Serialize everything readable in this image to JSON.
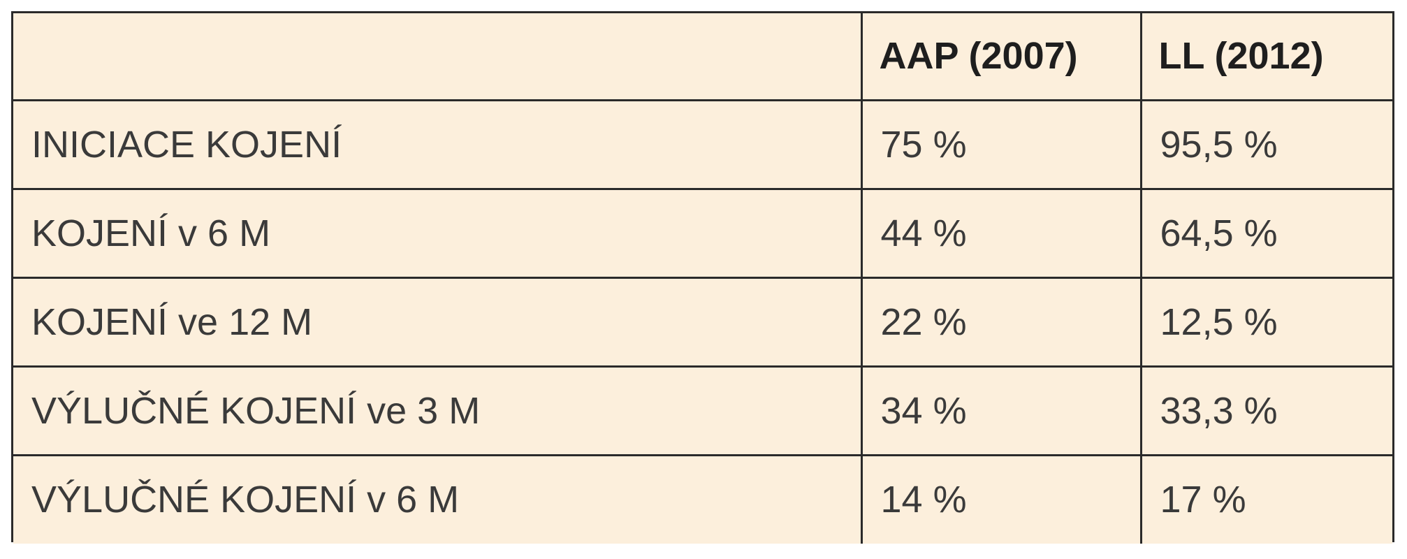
{
  "table": {
    "headers": [
      "",
      "AAP (2007)",
      "LL (2012)"
    ],
    "rows": [
      {
        "label": "INICIACE KOJENÍ",
        "aap": "75 %",
        "ll": "95,5 %"
      },
      {
        "label": "KOJENÍ v 6 M",
        "aap": "44 %",
        "ll": "64,5 %"
      },
      {
        "label": "KOJENÍ ve 12 M",
        "aap": "22 %",
        "ll": "12,5 %"
      },
      {
        "label": "VÝLUČNÉ KOJENÍ ve 3 M",
        "aap": "34 %",
        "ll": "33,3 %"
      },
      {
        "label": "VÝLUČNÉ KOJENÍ v 6 M",
        "aap": "14 %",
        "ll": "17 %"
      }
    ]
  },
  "colors": {
    "background": "#fcefdc",
    "border": "#2a2a2a",
    "text": "#3a3a3a"
  }
}
